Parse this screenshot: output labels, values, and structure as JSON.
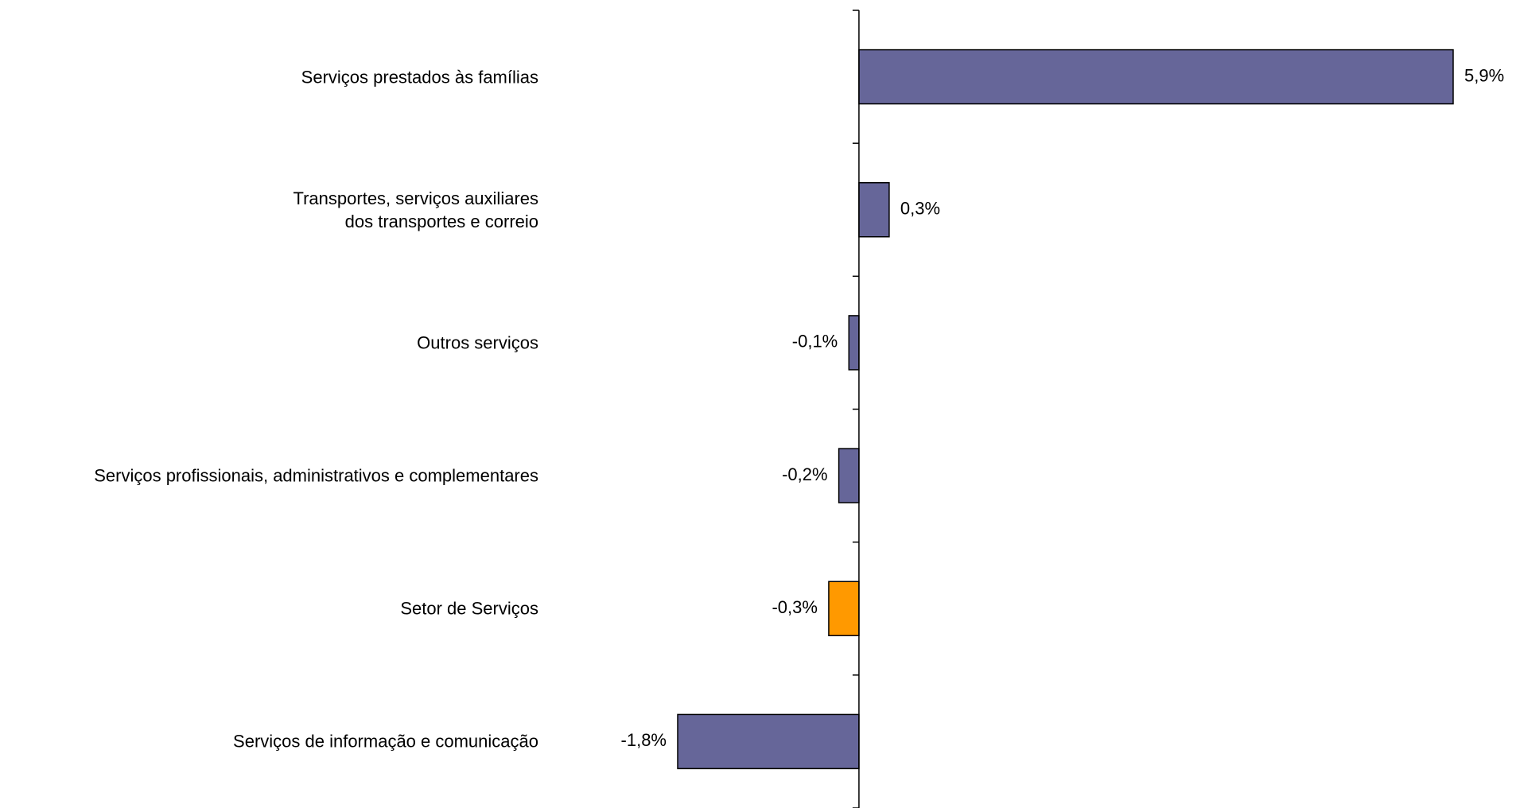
{
  "chart_data": {
    "type": "hbar",
    "categories": [
      "Serviços prestados às famílias",
      "Transportes, serviços auxiliares\ndos transportes e correio",
      "Outros serviços",
      "Serviços profissionais, administrativos  e complementares",
      "Setor de Serviços",
      "Serviços de informação e comunicação"
    ],
    "values": [
      5.9,
      0.3,
      -0.1,
      -0.2,
      -0.3,
      -1.8
    ],
    "value_labels": [
      "5,9%",
      "0,3%",
      "-0,1%",
      "-0,2%",
      "-0,3%",
      "-1,8%"
    ],
    "colors": [
      "#666699",
      "#666699",
      "#666699",
      "#666699",
      "#ff9900",
      "#666699"
    ]
  }
}
